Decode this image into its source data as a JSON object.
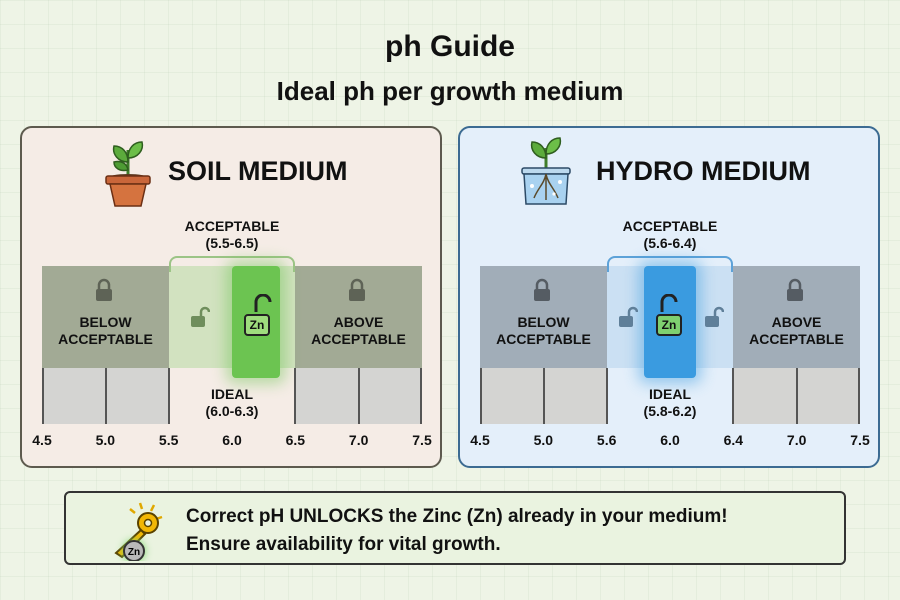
{
  "header": {
    "title": "ph Guide",
    "subtitle": "Ideal ph per growth medium"
  },
  "colors": {
    "soil_ideal": "#6cc451",
    "hydro_ideal": "#3a9be0",
    "soil_outer": "#a2aa95",
    "hydro_outer": "#a1adb8"
  },
  "panels": {
    "soil": {
      "title": "SOIL MEDIUM",
      "icon": "potted-plant-icon",
      "acceptable_label": "ACCEPTABLE",
      "acceptable_value": "(5.5-6.5)",
      "ideal_label": "IDEAL",
      "ideal_value": "(6.0-6.3)",
      "below_line1": "BELOW",
      "below_line2": "ACCEPTABLE",
      "above_line1": "ABOVE",
      "above_line2": "ACCEPTABLE",
      "zn_label": "Zn",
      "scale_min": 4.5,
      "scale_max": 7.5,
      "acceptable_range": [
        5.5,
        6.5
      ],
      "ideal_range": [
        6.0,
        6.3
      ],
      "ticks": [
        "4.5",
        "5.0",
        "5.5",
        "6.0",
        "6.5",
        "7.0",
        "7.5"
      ]
    },
    "hydro": {
      "title": "HYDRO MEDIUM",
      "icon": "hydroponic-plant-icon",
      "acceptable_label": "ACCEPTABLE",
      "acceptable_value": "(5.6-6.4)",
      "ideal_label": "IDEAL",
      "ideal_value": "(5.8-6.2)",
      "below_line1": "BELOW",
      "below_line2": "ACCEPTABLE",
      "above_line1": "ABOVE",
      "above_line2": "ACCEPTABLE",
      "zn_label": "Zn",
      "scale_min": 4.5,
      "scale_max": 7.5,
      "acceptable_range": [
        5.6,
        6.4
      ],
      "ideal_range": [
        5.8,
        6.2
      ],
      "ticks": [
        "4.5",
        "5.0",
        "5.6",
        "6.0",
        "6.4",
        "7.0",
        "7.5"
      ]
    }
  },
  "banner": {
    "icon": "key-zinc-icon",
    "zn_label": "Zn",
    "line1": "Correct pH UNLOCKS the Zinc (Zn) already in your medium!",
    "line2": "Ensure availability for vital growth."
  }
}
